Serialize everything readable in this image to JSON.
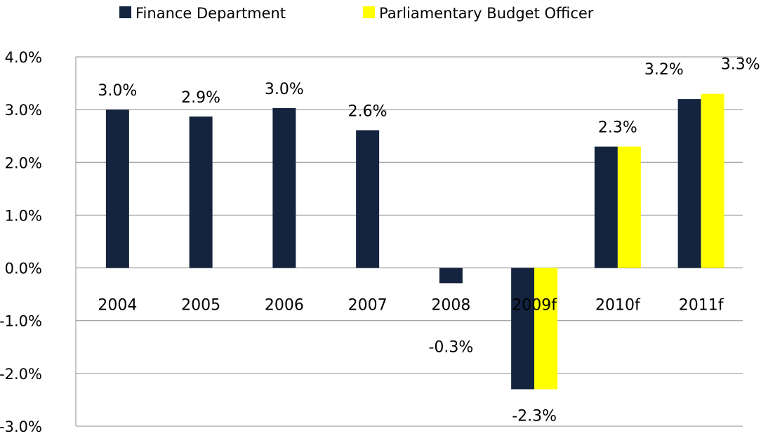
{
  "chart_data": {
    "type": "bar",
    "categories": [
      "2004",
      "2005",
      "2006",
      "2007",
      "2008",
      "2009f",
      "2010f",
      "2011f"
    ],
    "series": [
      {
        "name": "Finance Department",
        "color": "#14243f",
        "values": [
          3.0,
          2.87,
          3.03,
          2.61,
          -0.29,
          -2.3,
          2.3,
          3.2
        ],
        "labels": [
          "3.0%",
          "2.9%",
          "3.0%",
          "2.6%",
          "-0.3%",
          "-2.3%",
          "2.3%",
          "3.2%"
        ]
      },
      {
        "name": "Parliamentary Budget Officer",
        "color": "#ffff00",
        "values": [
          null,
          null,
          null,
          null,
          null,
          -2.3,
          2.3,
          3.3
        ],
        "labels": [
          null,
          null,
          null,
          null,
          null,
          null,
          null,
          "3.3%"
        ]
      }
    ],
    "ylim": [
      -3.0,
      4.0
    ],
    "yticks": [
      4.0,
      3.0,
      2.0,
      1.0,
      0.0,
      -1.0,
      -2.0,
      -3.0
    ],
    "ytick_labels": [
      "4.0%",
      "3.0%",
      "2.0%",
      "1.0%",
      "0.0%",
      "-1.0%",
      "-2.0%",
      "-3.0%"
    ],
    "grid": true,
    "legend_position": "top",
    "title": "",
    "xlabel": "",
    "ylabel": ""
  }
}
